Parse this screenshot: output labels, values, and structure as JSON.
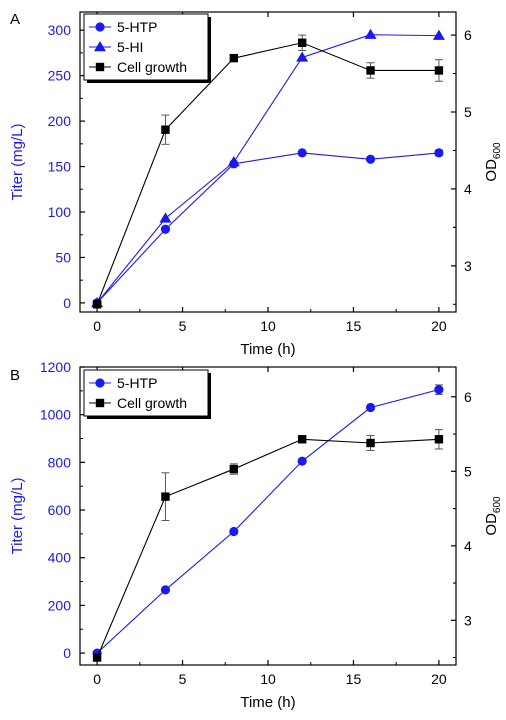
{
  "colors": {
    "blue": "#1a1af0",
    "black": "#000000",
    "error_bar": "#555555"
  },
  "chart_data": [
    {
      "type": "line",
      "panel_label": "A",
      "xlabel": "Time (h)",
      "ylabel_left": "Titer (mg/L)",
      "ylabel_right_main": "OD",
      "ylabel_right_sub": "600",
      "xlim": [
        -1,
        21
      ],
      "ylim_left": [
        -10,
        320
      ],
      "ylim_right": [
        2.4,
        6.3
      ],
      "x_ticks": [
        0,
        5,
        10,
        15,
        20
      ],
      "y_left_ticks": [
        0,
        50,
        100,
        150,
        200,
        250,
        300
      ],
      "y_right_ticks": [
        3,
        4,
        5,
        6
      ],
      "legend_position": "top-left",
      "series": [
        {
          "name": "5-HTP",
          "axis": "left",
          "marker": "circle",
          "color": "#1a1af0",
          "x": [
            0,
            4,
            8,
            12,
            16,
            20
          ],
          "y": [
            0,
            81,
            153,
            165,
            158,
            165
          ],
          "err": [
            0,
            0,
            0,
            0,
            0,
            3
          ]
        },
        {
          "name": "5-HI",
          "axis": "left",
          "marker": "triangle",
          "color": "#1a1af0",
          "x": [
            0,
            4,
            8,
            12,
            16,
            20
          ],
          "y": [
            0,
            93,
            155,
            270,
            295,
            294
          ],
          "err": [
            0,
            0,
            0,
            0,
            0,
            0
          ]
        },
        {
          "name": "Cell growth",
          "axis": "right",
          "marker": "square",
          "color": "#000000",
          "x": [
            0,
            4,
            8,
            12,
            16,
            20
          ],
          "y": [
            2.5,
            4.77,
            5.7,
            5.9,
            5.54,
            5.54
          ],
          "err": [
            0,
            0.19,
            0,
            0.1,
            0.1,
            0.14
          ]
        }
      ]
    },
    {
      "type": "line",
      "panel_label": "B",
      "xlabel": "Time (h)",
      "ylabel_left": "Titer (mg/L)",
      "ylabel_right_main": "OD",
      "ylabel_right_sub": "600",
      "xlim": [
        -1,
        21
      ],
      "ylim_left": [
        -50,
        1200
      ],
      "ylim_right": [
        2.4,
        6.4
      ],
      "x_ticks": [
        0,
        5,
        10,
        15,
        20
      ],
      "y_left_ticks": [
        0,
        200,
        400,
        600,
        800,
        1000,
        1200
      ],
      "y_right_ticks": [
        3,
        4,
        5,
        6
      ],
      "legend_position": "top-left",
      "series": [
        {
          "name": "5-HTP",
          "axis": "left",
          "marker": "circle",
          "color": "#1a1af0",
          "x": [
            0,
            4,
            8,
            12,
            16,
            20
          ],
          "y": [
            0,
            265,
            510,
            805,
            1030,
            1105
          ],
          "err": [
            0,
            0,
            0,
            0,
            0,
            20
          ]
        },
        {
          "name": "Cell growth",
          "axis": "right",
          "marker": "square",
          "color": "#000000",
          "x": [
            0,
            4,
            8,
            12,
            16,
            20
          ],
          "y": [
            2.5,
            4.66,
            5.03,
            5.43,
            5.38,
            5.43
          ],
          "err": [
            0,
            0.32,
            0.07,
            0,
            0.1,
            0.13
          ]
        }
      ]
    }
  ]
}
